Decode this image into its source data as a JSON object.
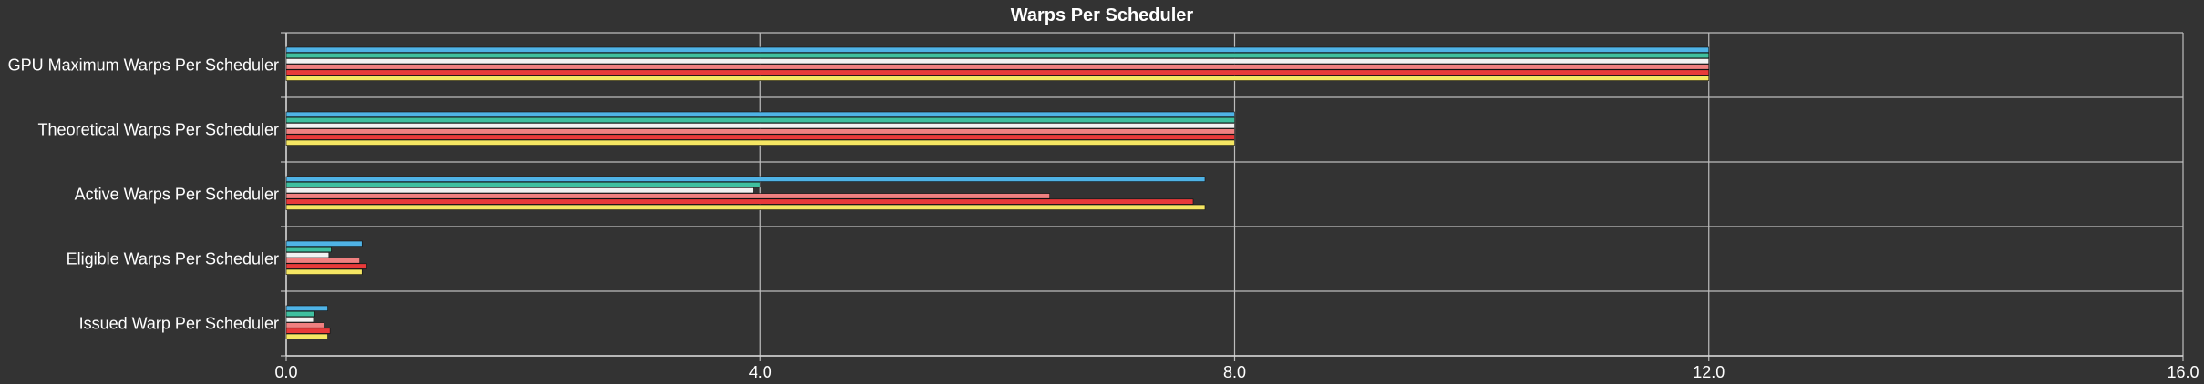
{
  "chart_data": {
    "type": "bar",
    "orientation": "horizontal",
    "title": "Warps Per Scheduler",
    "xlabel": "",
    "ylabel": "",
    "xlim": [
      0,
      16
    ],
    "x_ticks": [
      "0.0",
      "4.0",
      "8.0",
      "12.0",
      "16.0"
    ],
    "grid": true,
    "legend": "none",
    "categories": [
      "GPU Maximum Warps Per Scheduler",
      "Theoretical Warps Per Scheduler",
      "Active Warps Per Scheduler",
      "Eligible Warps Per Scheduler",
      "Issued Warp Per Scheduler"
    ],
    "series": [
      {
        "color": "#4fb3e6",
        "values": [
          12,
          8,
          7.75,
          0.64,
          0.35
        ]
      },
      {
        "color": "#3fbf9f",
        "values": [
          12,
          8,
          4.0,
          0.38,
          0.24
        ]
      },
      {
        "color": "#f2f2f2",
        "values": [
          12,
          8,
          3.94,
          0.36,
          0.23
        ]
      },
      {
        "color": "#f08080",
        "values": [
          12,
          8,
          6.44,
          0.62,
          0.32
        ]
      },
      {
        "color": "#e83a3a",
        "values": [
          12,
          8,
          7.65,
          0.68,
          0.37
        ]
      },
      {
        "color": "#f5e663",
        "values": [
          12,
          8,
          7.75,
          0.64,
          0.35
        ]
      }
    ]
  }
}
